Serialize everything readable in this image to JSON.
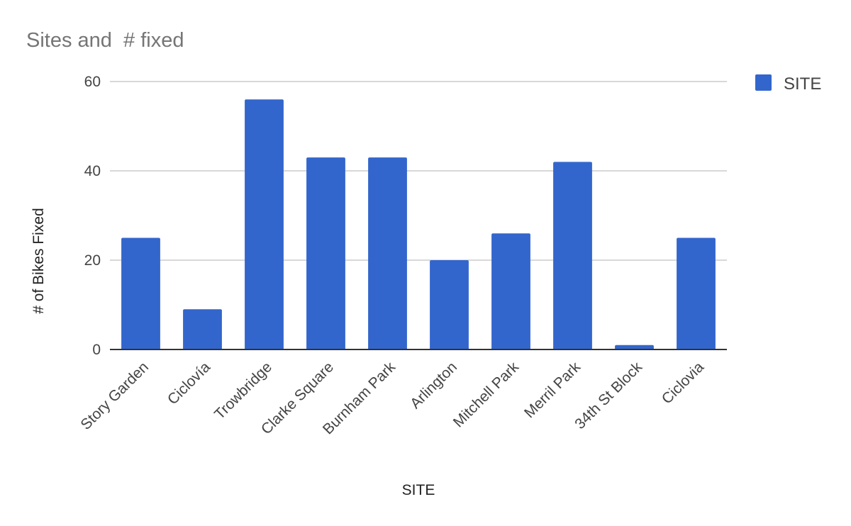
{
  "chart_data": {
    "type": "bar",
    "title": "Sites and  # fixed",
    "xlabel": "SITE",
    "ylabel": "# of Bikes Fixed",
    "categories": [
      "Story Garden",
      "Ciclovía",
      "Trowbridge",
      "Clarke Square",
      "Burnham Park",
      "Arlington",
      "Mitchell Park",
      "Merril Park",
      "34th St Block",
      "Ciclovia"
    ],
    "series": [
      {
        "name": "SITE",
        "color": "#3366cc",
        "values": [
          25,
          9,
          56,
          43,
          43,
          20,
          26,
          42,
          1,
          25
        ]
      }
    ],
    "ylim": [
      0,
      60
    ],
    "yticks": [
      0,
      20,
      40,
      60
    ],
    "grid": true,
    "legend": "right"
  }
}
